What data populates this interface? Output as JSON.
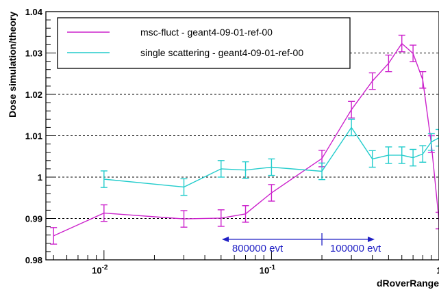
{
  "chart_data": {
    "type": "line",
    "title": "",
    "xlabel": "dRoverRange",
    "ylabel": "Dose simulation/theory",
    "x_scale": "log",
    "xlim": [
      0.0045,
      1.0
    ],
    "ylim": [
      0.98,
      1.04
    ],
    "x_ticks": [
      {
        "value": 0.01,
        "base": "10",
        "exp": "-2"
      },
      {
        "value": 0.1,
        "base": "10",
        "exp": "-1"
      },
      {
        "value": 1,
        "base": "1",
        "exp": ""
      }
    ],
    "y_ticks": [
      {
        "value": 0.98,
        "label": "0.98"
      },
      {
        "value": 0.99,
        "label": "0.99"
      },
      {
        "value": 1.0,
        "label": "1"
      },
      {
        "value": 1.01,
        "label": "1.01"
      },
      {
        "value": 1.02,
        "label": "1.02"
      },
      {
        "value": 1.03,
        "label": "1.03"
      },
      {
        "value": 1.04,
        "label": "1.04"
      }
    ],
    "grid": "horizontal dashed",
    "legend_position": "top-left",
    "series": [
      {
        "name": "msc-fluct - geant4-09-01-ref-00",
        "color": "#cc22cc",
        "x": [
          0.005,
          0.01,
          0.03,
          0.05,
          0.07,
          0.1,
          0.2,
          0.3,
          0.4,
          0.5,
          0.6,
          0.7,
          0.8,
          0.9,
          1.0
        ],
        "y": [
          0.9858,
          0.9913,
          0.9899,
          0.9901,
          0.9911,
          0.9962,
          1.0045,
          1.0163,
          1.0232,
          1.0275,
          1.0323,
          1.0299,
          1.0235,
          1.008,
          0.9895
        ],
        "err": [
          0.002,
          0.002,
          0.002,
          0.002,
          0.002,
          0.002,
          0.002,
          0.002,
          0.002,
          0.002,
          0.002,
          0.002,
          0.002,
          0.002,
          0.002
        ]
      },
      {
        "name": "single scattering - geant4-09-01-ref-00",
        "color": "#22cccc",
        "x": [
          0.01,
          0.03,
          0.05,
          0.07,
          0.1,
          0.2,
          0.3,
          0.4,
          0.5,
          0.6,
          0.7,
          0.8,
          0.9,
          1.0
        ],
        "y": [
          0.9995,
          0.9976,
          1.002,
          1.0017,
          1.0024,
          1.0014,
          1.012,
          1.0044,
          1.0053,
          1.0053,
          1.0047,
          1.0056,
          1.0085,
          1.0095
        ],
        "err": [
          0.002,
          0.002,
          0.002,
          0.002,
          0.002,
          0.002,
          0.002,
          0.002,
          0.002,
          0.002,
          0.002,
          0.002,
          0.002,
          0.002
        ]
      }
    ],
    "annotations": [
      {
        "text": "800000 evt",
        "arrow": "left"
      },
      {
        "text": "100000 evt",
        "arrow": "right"
      }
    ],
    "annotation_split_x": 0.2
  }
}
